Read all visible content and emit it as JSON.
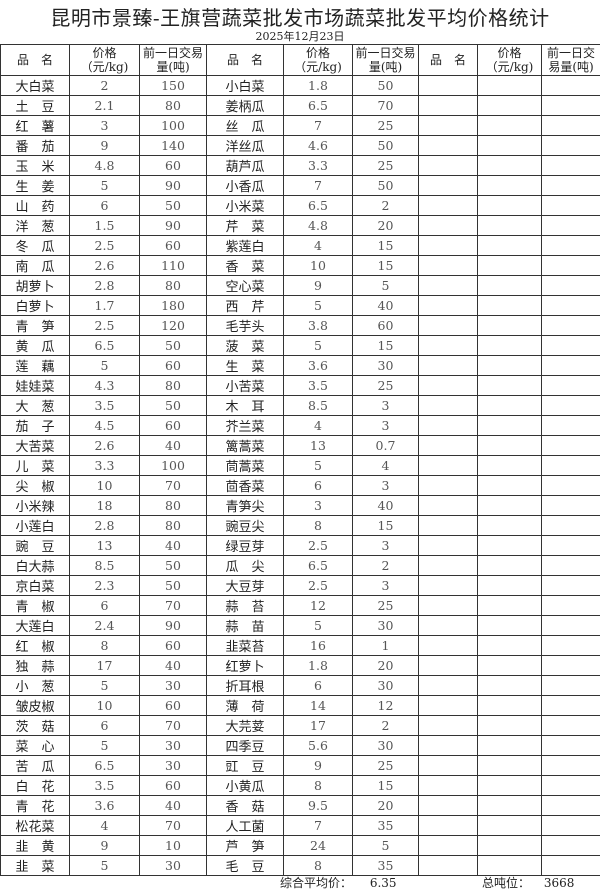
{
  "title": "昆明市景臻-王旗营蔬菜批发市场蔬菜批发平均价格统计",
  "date": "2025年12月23日",
  "headers": [
    "品　名",
    "价格（元/kg)",
    "前一日交易量(吨)",
    "品　名",
    "价格（元/kg)",
    "前一日交易量(吨)",
    "品　名",
    "价格（元/kg)",
    "前一日交易量(吨)"
  ],
  "rows": [
    [
      "大白菜",
      "2",
      "150",
      "小白菜",
      "1.8",
      "50"
    ],
    [
      "土　豆",
      "2.1",
      "80",
      "姜柄瓜",
      "6.5",
      "70"
    ],
    [
      "红　薯",
      "3",
      "100",
      "丝　瓜",
      "7",
      "25"
    ],
    [
      "番　茄",
      "9",
      "140",
      "洋丝瓜",
      "4.6",
      "50"
    ],
    [
      "玉　米",
      "4.8",
      "60",
      "葫芦瓜",
      "3.3",
      "25"
    ],
    [
      "生　姜",
      "5",
      "90",
      "小香瓜",
      "7",
      "50"
    ],
    [
      "山　药",
      "6",
      "50",
      "小米菜",
      "6.5",
      "2"
    ],
    [
      "洋　葱",
      "1.5",
      "90",
      "芹　菜",
      "4.8",
      "20"
    ],
    [
      "冬　瓜",
      "2.5",
      "60",
      "紫莲白",
      "4",
      "15"
    ],
    [
      "南　瓜",
      "2.6",
      "110",
      "香　菜",
      "10",
      "15"
    ],
    [
      "胡萝卜",
      "2.8",
      "80",
      "空心菜",
      "9",
      "5"
    ],
    [
      "白萝卜",
      "1.7",
      "180",
      "西　芹",
      "5",
      "40"
    ],
    [
      "青　笋",
      "2.5",
      "120",
      "毛芋头",
      "3.8",
      "60"
    ],
    [
      "黄　瓜",
      "6.5",
      "50",
      "菠　菜",
      "5",
      "15"
    ],
    [
      "莲　藕",
      "5",
      "60",
      "生　菜",
      "3.6",
      "30"
    ],
    [
      "娃娃菜",
      "4.3",
      "80",
      "小苦菜",
      "3.5",
      "25"
    ],
    [
      "大　葱",
      "3.5",
      "50",
      "木　耳",
      "8.5",
      "3"
    ],
    [
      "茄　子",
      "4.5",
      "60",
      "芥兰菜",
      "4",
      "3"
    ],
    [
      "大苦菜",
      "2.6",
      "40",
      "篱蒿菜",
      "13",
      "0.7"
    ],
    [
      "儿　菜",
      "3.3",
      "100",
      "茼蒿菜",
      "5",
      "4"
    ],
    [
      "尖　椒",
      "10",
      "70",
      "茴香菜",
      "6",
      "3"
    ],
    [
      "小米辣",
      "18",
      "80",
      "青笋尖",
      "3",
      "40"
    ],
    [
      "小莲白",
      "2.8",
      "80",
      "豌豆尖",
      "8",
      "15"
    ],
    [
      "豌　豆",
      "13",
      "40",
      "绿豆芽",
      "2.5",
      "3"
    ],
    [
      "白大蒜",
      "8.5",
      "50",
      "瓜　尖",
      "6.5",
      "2"
    ],
    [
      "京白菜",
      "2.3",
      "50",
      "大豆芽",
      "2.5",
      "3"
    ],
    [
      "青　椒",
      "6",
      "70",
      "蒜　苔",
      "12",
      "25"
    ],
    [
      "大莲白",
      "2.4",
      "90",
      "蒜　苗",
      "5",
      "30"
    ],
    [
      "红　椒",
      "8",
      "60",
      "韭菜苔",
      "16",
      "1"
    ],
    [
      "独　蒜",
      "17",
      "40",
      "红萝卜",
      "1.8",
      "20"
    ],
    [
      "小　葱",
      "5",
      "30",
      "折耳根",
      "6",
      "30"
    ],
    [
      "皱皮椒",
      "10",
      "60",
      "薄　荷",
      "14",
      "12"
    ],
    [
      "茨　菇",
      "6",
      "70",
      "大芫荽",
      "17",
      "2"
    ],
    [
      "菜　心",
      "5",
      "30",
      "四季豆",
      "5.6",
      "30"
    ],
    [
      "苦　瓜",
      "6.5",
      "30",
      "豇　豆",
      "9",
      "25"
    ],
    [
      "白　花",
      "3.5",
      "60",
      "小黄瓜",
      "8",
      "15"
    ],
    [
      "青　花",
      "3.6",
      "40",
      "香　菇",
      "9.5",
      "20"
    ],
    [
      "松花菜",
      "4",
      "70",
      "人工菌",
      "7",
      "35"
    ],
    [
      "韭　黄",
      "9",
      "10",
      "芦　笋",
      "24",
      "5"
    ],
    [
      "韭　菜",
      "5",
      "30",
      "毛　豆",
      "8",
      "35"
    ]
  ],
  "footer": {
    "avg_label": "综合平均价：",
    "avg_value": "6.35",
    "total_label": "总吨位：",
    "total_value": "3668"
  }
}
